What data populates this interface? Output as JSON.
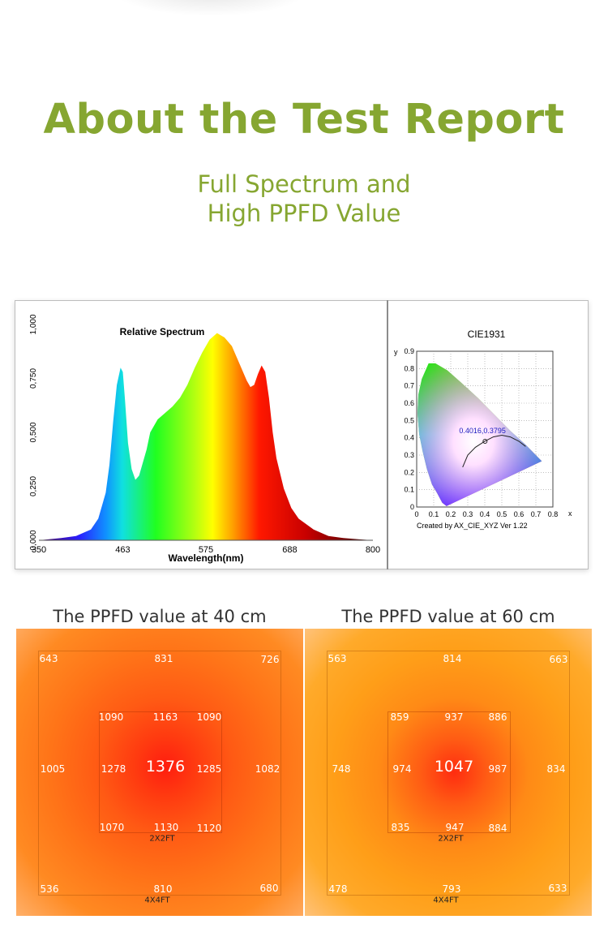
{
  "header": {
    "title": "About the Test Report",
    "subtitle_line1": "Full Spectrum and",
    "subtitle_line2": "High PPFD Value"
  },
  "colors": {
    "accent": "#86a631"
  },
  "chart_data": [
    {
      "type": "area",
      "title": "Relative Spectrum",
      "xlabel": "Wavelength(nm)",
      "ylabel": "",
      "xlim": [
        350,
        800
      ],
      "ylim": [
        0,
        1.0
      ],
      "xticks": [
        "350",
        "463",
        "575",
        "688",
        "800"
      ],
      "yticks": [
        "0,000",
        "0,250",
        "0,500",
        "0,750",
        "1,000"
      ],
      "x": [
        350,
        380,
        400,
        420,
        430,
        440,
        445,
        450,
        455,
        460,
        463,
        466,
        470,
        475,
        480,
        485,
        490,
        495,
        500,
        510,
        520,
        530,
        540,
        550,
        560,
        570,
        580,
        590,
        600,
        610,
        620,
        630,
        635,
        640,
        645,
        650,
        655,
        660,
        665,
        670,
        680,
        690,
        700,
        720,
        740,
        760,
        780,
        800
      ],
      "values": [
        0.0,
        0.01,
        0.02,
        0.05,
        0.1,
        0.22,
        0.35,
        0.55,
        0.72,
        0.8,
        0.78,
        0.65,
        0.45,
        0.33,
        0.28,
        0.3,
        0.36,
        0.42,
        0.5,
        0.56,
        0.59,
        0.62,
        0.66,
        0.72,
        0.8,
        0.87,
        0.93,
        0.96,
        0.94,
        0.9,
        0.82,
        0.74,
        0.71,
        0.72,
        0.77,
        0.81,
        0.78,
        0.66,
        0.5,
        0.38,
        0.24,
        0.15,
        0.1,
        0.05,
        0.02,
        0.01,
        0.005,
        0.0
      ]
    },
    {
      "type": "scatter",
      "title": "CIE1931",
      "xlabel": "x",
      "ylabel": "y",
      "xlim": [
        0,
        0.8
      ],
      "ylim": [
        0,
        0.9
      ],
      "xticks": [
        "0",
        "0.1",
        "0.2",
        "0.3",
        "0.4",
        "0.5",
        "0.6",
        "0.7",
        "0.8"
      ],
      "yticks": [
        "0",
        "0.1",
        "0.2",
        "0.3",
        "0.4",
        "0.5",
        "0.6",
        "0.7",
        "0.8",
        "0.9"
      ],
      "point": {
        "x": 0.4016,
        "y": 0.3795,
        "label": "0.4016,0.3795"
      },
      "footer": "Created by AX_CIE_XYZ Ver 1.22"
    },
    {
      "type": "heatmap",
      "title": "The PPFD value at 40 cm",
      "center": "1376",
      "inner": [
        "1090",
        "1163",
        "1090",
        "1278",
        "1285",
        "1070",
        "1130",
        "1120"
      ],
      "outer": [
        "643",
        "831",
        "726",
        "1005",
        "1082",
        "536",
        "810",
        "680"
      ],
      "inner_label": "2X2FT",
      "outer_label": "4X4FT"
    },
    {
      "type": "heatmap",
      "title": "The PPFD value at 60 cm",
      "center": "1047",
      "inner": [
        "859",
        "937",
        "886",
        "974",
        "987",
        "835",
        "947",
        "884"
      ],
      "outer": [
        "563",
        "814",
        "663",
        "748",
        "834",
        "478",
        "793",
        "633"
      ],
      "inner_label": "2X2FT",
      "outer_label": "4X4FT"
    }
  ]
}
